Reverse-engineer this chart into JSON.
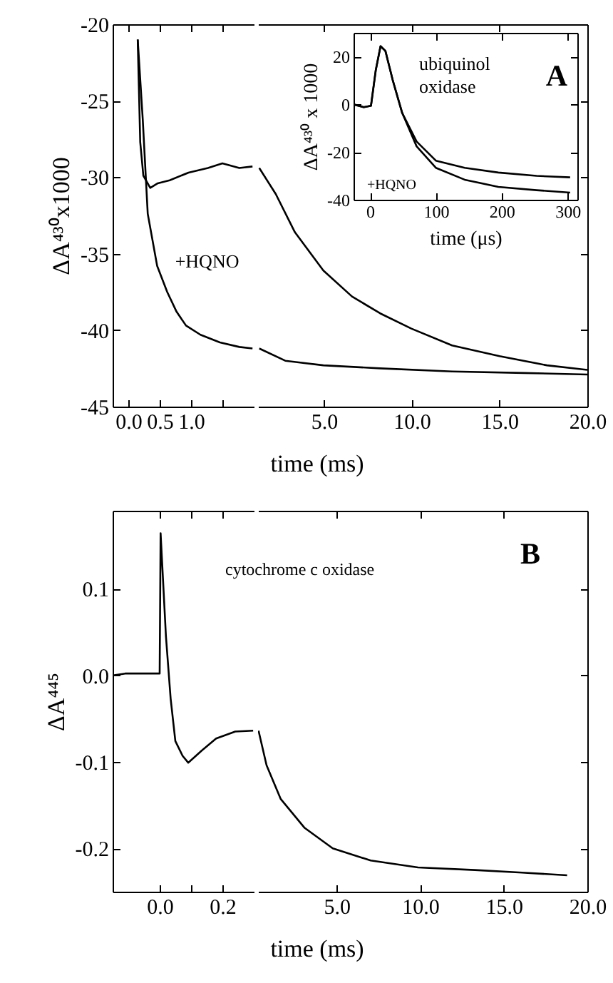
{
  "chart_data": [
    {
      "type": "line",
      "xlim": [
        -0.25,
        2.0
      ],
      "xticks": [
        {
          "value": 0,
          "label": "0.0"
        },
        {
          "value": 0.5,
          "label": "0.5"
        },
        {
          "value": 1,
          "label": "1.0"
        },
        {
          "value": 1.5,
          "label": null
        }
      ],
      "ylim": [
        -45,
        -20
      ],
      "yticks": [
        -45,
        -40,
        -35,
        -30,
        -25,
        -20
      ],
      "ylabel": "ΔA⁴³⁰x1000",
      "series": [
        {
          "color": "#000000",
          "x": [
            0.15,
            0.19,
            0.24,
            0.35,
            0.47,
            0.66,
            0.96,
            1.27,
            1.5,
            1.77,
            1.98
          ],
          "values": [
            -21.0,
            -27.7,
            -29.9,
            -30.7,
            -30.4,
            -30.2,
            -29.7,
            -29.4,
            -29.1,
            -29.4,
            -29.3
          ]
        },
        {
          "name": "+HQNO",
          "color": "#000000",
          "x": [
            0.15,
            0.23,
            0.31,
            0.46,
            0.62,
            0.77,
            0.92,
            1.15,
            1.46,
            1.77,
            1.98
          ],
          "values": [
            -21.0,
            -26.2,
            -32.4,
            -35.8,
            -37.5,
            -38.8,
            -39.7,
            -40.3,
            -40.8,
            -41.1,
            -41.2
          ]
        }
      ]
    },
    {
      "type": "line",
      "xlim": [
        1.25,
        20
      ],
      "xticks": [
        {
          "value": 5,
          "label": "5.0"
        },
        {
          "value": 10,
          "label": "10.0"
        },
        {
          "value": 15,
          "label": "15.0"
        },
        {
          "value": 20,
          "label": "20.0"
        }
      ],
      "ylim": [
        -45,
        -20
      ],
      "yticks": [
        -45,
        -40,
        -35,
        -30,
        -25,
        -20
      ],
      "xlabel": "time (ms)",
      "tick_labels": "x",
      "series": [
        {
          "color": "#000000",
          "x": [
            1.32,
            2.26,
            3.35,
            4.97,
            6.6,
            8.2,
            9.98,
            12.3,
            15,
            17.7,
            20
          ],
          "values": [
            -29.4,
            -31.1,
            -33.6,
            -36.1,
            -37.8,
            -38.9,
            -39.9,
            -41.0,
            -41.7,
            -42.3,
            -42.6
          ]
        },
        {
          "color": "#000000",
          "x": [
            1.32,
            2.8,
            4.97,
            8.2,
            12.3,
            16.4,
            20
          ],
          "values": [
            -41.2,
            -42.0,
            -42.3,
            -42.5,
            -42.7,
            -42.8,
            -42.9
          ]
        }
      ]
    },
    {
      "type": "line",
      "xlim": [
        -25,
        315
      ],
      "xticks": [
        0,
        100,
        200,
        300
      ],
      "ylim": [
        -40,
        30
      ],
      "yticks": [
        -40,
        -20,
        0,
        20
      ],
      "xlabel": "time (μs)",
      "ylabel": "ΔA⁴³⁰ x 1000",
      "annotations": [
        "A",
        "ubiquinol oxidase"
      ],
      "series": [
        {
          "color": "#000000",
          "x": [
            -25,
            -9.5,
            1.5,
            8.8,
            16,
            23.4,
            34.3,
            48.9,
            70.8,
            100,
            143.8,
            195,
            253,
            304
          ],
          "values": [
            0,
            -1.2,
            -0.6,
            14.4,
            24.4,
            22.4,
            10.4,
            -3.6,
            -15.6,
            -23.6,
            -26.6,
            -28.6,
            -30,
            -30.6
          ]
        },
        {
          "name": "+HQNO",
          "color": "#000000",
          "x": [
            -25,
            -9.5,
            1.5,
            8.8,
            16,
            23.4,
            34.3,
            48.9,
            70.8,
            100,
            143.8,
            195,
            253,
            304
          ],
          "values": [
            0,
            -1.2,
            -0.6,
            14.4,
            24.4,
            22.4,
            10.4,
            -3.6,
            -17.6,
            -26.6,
            -31.6,
            -34.6,
            -36,
            -37
          ]
        }
      ]
    },
    {
      "type": "line",
      "xlim": [
        -0.15,
        0.3
      ],
      "xticks": [
        {
          "value": 0,
          "label": "0.0"
        },
        {
          "value": 0.1,
          "label": null
        },
        {
          "value": 0.2,
          "label": "0.2"
        }
      ],
      "ylim": [
        -0.25,
        0.19
      ],
      "yticks": [
        -0.2,
        -0.1,
        {
          "value": 0,
          "label": "0.0"
        },
        0.1
      ],
      "ylabel": "ΔA⁴⁴⁵",
      "series": [
        {
          "color": "#000000",
          "x": [
            -0.145,
            -0.11,
            -0.04,
            0.0,
            0.003,
            0.02,
            0.035,
            0.05,
            0.073,
            0.091,
            0.134,
            0.18,
            0.241,
            0.298
          ],
          "values": [
            0,
            0.002,
            0.002,
            0.002,
            0.164,
            0.045,
            -0.027,
            -0.076,
            -0.093,
            -0.101,
            -0.087,
            -0.073,
            -0.065,
            -0.064
          ]
        }
      ]
    },
    {
      "type": "line",
      "xlim": [
        0.3,
        20
      ],
      "xticks": [
        {
          "value": 5,
          "label": "5.0"
        },
        {
          "value": 10,
          "label": "10.0"
        },
        {
          "value": 15,
          "label": "15.0"
        },
        {
          "value": 20,
          "label": "20.0"
        }
      ],
      "ylim": [
        -0.25,
        0.19
      ],
      "yticks": [
        -0.2,
        -0.1,
        0,
        0.1
      ],
      "xlabel": "time (ms)",
      "tick_labels": "x",
      "annotations": [
        "B",
        "cytochrome c oxidase"
      ],
      "series": [
        {
          "color": "#000000",
          "x": [
            0.33,
            0.81,
            1.66,
            3.07,
            4.77,
            7.04,
            9.87,
            13.27,
            16.1,
            18.79
          ],
          "values": [
            -0.064,
            -0.104,
            -0.143,
            -0.176,
            -0.2,
            -0.214,
            -0.222,
            -0.225,
            -0.228,
            -0.231
          ]
        }
      ]
    }
  ]
}
